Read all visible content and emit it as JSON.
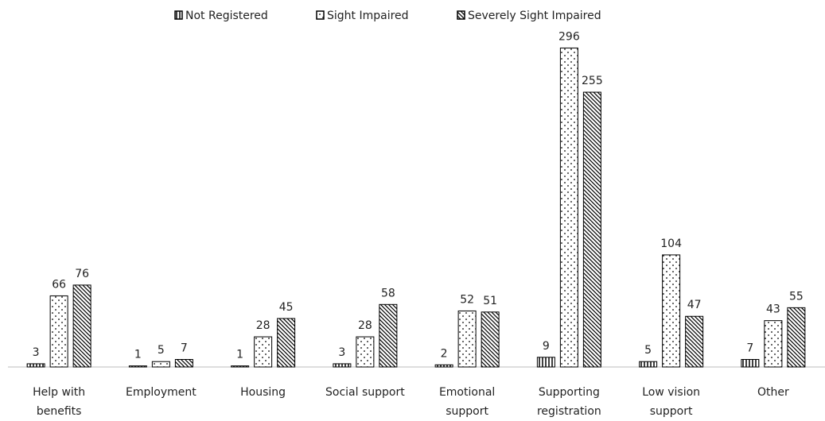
{
  "chart_data": {
    "type": "bar",
    "categories": [
      "Help with benefits",
      "Employment",
      "Housing",
      "Social support",
      "Emotional support",
      "Supporting registration",
      "Low vision support",
      "Other"
    ],
    "series": [
      {
        "name": "Not Registered",
        "color": "#000000",
        "pattern": "stripes",
        "values": [
          3,
          1,
          1,
          3,
          2,
          9,
          5,
          7
        ]
      },
      {
        "name": "Sight Impaired",
        "color": "#000000",
        "pattern": "dots",
        "values": [
          66,
          5,
          28,
          28,
          52,
          296,
          104,
          43
        ]
      },
      {
        "name": "Severely Sight Impaired",
        "color": "#000000",
        "pattern": "hatch",
        "values": [
          76,
          7,
          45,
          58,
          51,
          255,
          47,
          55
        ]
      }
    ],
    "ylim": [
      0,
      300
    ],
    "legend": "top"
  }
}
